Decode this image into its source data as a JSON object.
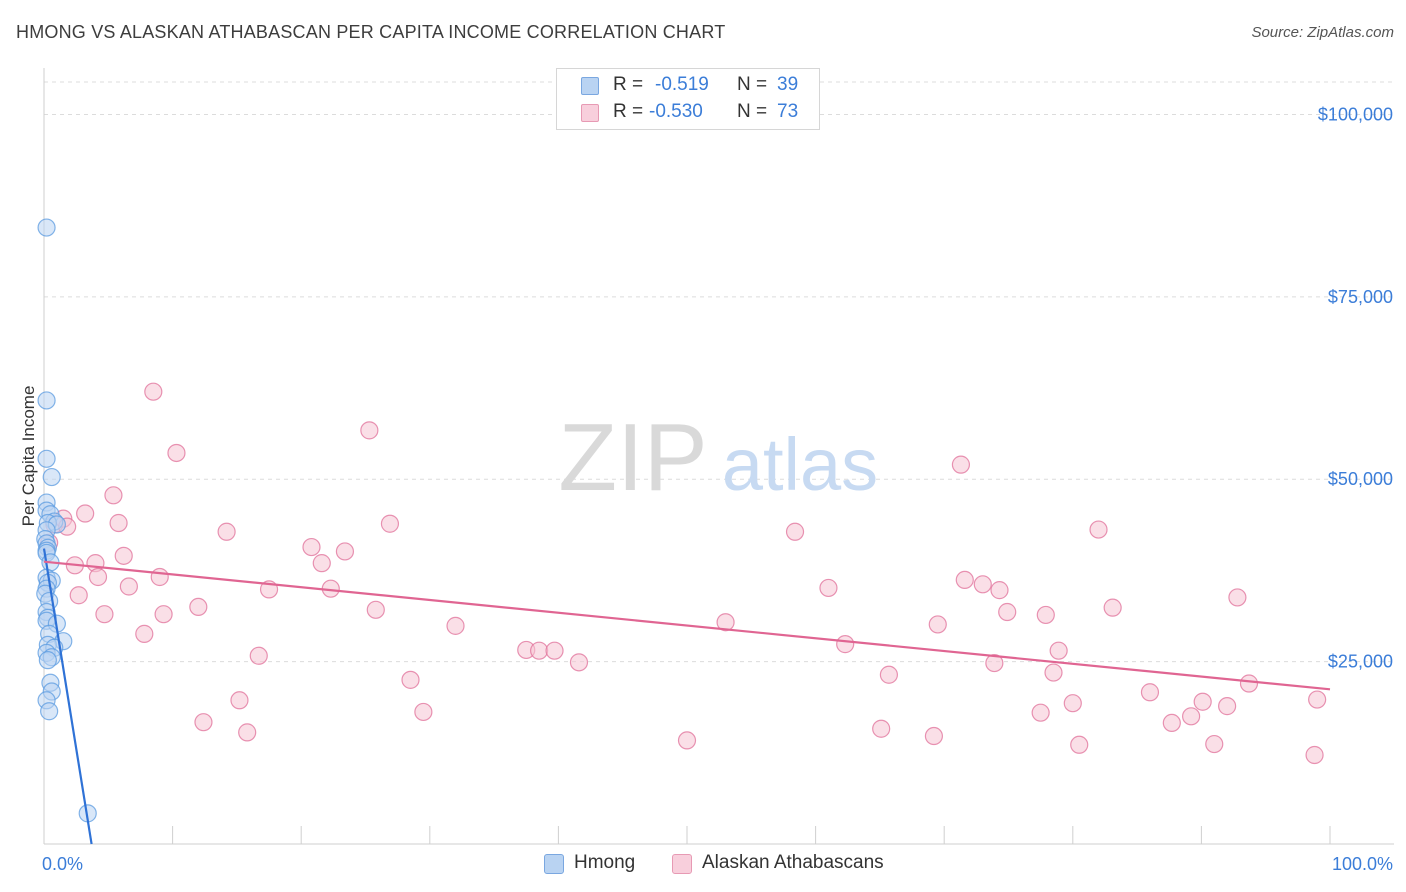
{
  "title": "HMONG VS ALASKAN ATHABASCAN PER CAPITA INCOME CORRELATION CHART",
  "source": "Source: ZipAtlas.com",
  "watermark": {
    "zip": "ZIP",
    "atlas": "atlas"
  },
  "legend": {
    "rows": [
      {
        "r_label": "R =",
        "r_value": "-0.519",
        "n_label": "N =",
        "n_value": "39"
      },
      {
        "r_label": "R =",
        "r_value": "-0.530",
        "n_label": "N =",
        "n_value": "73"
      }
    ]
  },
  "bottom_legend": [
    "Hmong",
    "Alaskan Athabascans"
  ],
  "chart_data": {
    "type": "scatter",
    "title": "HMONG VS ALASKAN ATHABASCAN PER CAPITA INCOME CORRELATION CHART",
    "xlabel": "",
    "ylabel": "Per Capita Income",
    "xlim": [
      0,
      100
    ],
    "ylim": [
      0,
      105000
    ],
    "x_tick_labels": [
      "0.0%",
      "100.0%"
    ],
    "y_ticks": [
      {
        "value": 25000,
        "label": "$25,000"
      },
      {
        "value": 50000,
        "label": "$50,000"
      },
      {
        "value": 75000,
        "label": "$75,000"
      },
      {
        "value": 100000,
        "label": "$100,000"
      }
    ],
    "grid": true,
    "legend_position": "top-center",
    "series": [
      {
        "name": "Hmong",
        "color": "#5b9be0",
        "fill": "#b9d3f2",
        "r": -0.519,
        "n": 39,
        "trend": {
          "x": [
            0,
            3.7
          ],
          "y": [
            40500,
            0
          ]
        },
        "points": [
          [
            0.2,
            84500
          ],
          [
            0.2,
            60800
          ],
          [
            0.2,
            52800
          ],
          [
            0.6,
            50300
          ],
          [
            0.2,
            46800
          ],
          [
            0.2,
            45700
          ],
          [
            0.5,
            45200
          ],
          [
            0.8,
            44200
          ],
          [
            0.3,
            44000
          ],
          [
            1.0,
            43800
          ],
          [
            0.2,
            43000
          ],
          [
            0.1,
            41800
          ],
          [
            0.2,
            41200
          ],
          [
            0.3,
            40600
          ],
          [
            0.2,
            40200
          ],
          [
            0.2,
            39900
          ],
          [
            0.5,
            38600
          ],
          [
            0.2,
            36500
          ],
          [
            0.6,
            36100
          ],
          [
            0.3,
            35800
          ],
          [
            0.2,
            35000
          ],
          [
            0.1,
            34300
          ],
          [
            0.4,
            33300
          ],
          [
            0.2,
            31800
          ],
          [
            0.3,
            31000
          ],
          [
            0.2,
            30600
          ],
          [
            1.0,
            30200
          ],
          [
            0.4,
            28800
          ],
          [
            1.5,
            27800
          ],
          [
            0.3,
            27300
          ],
          [
            0.8,
            26900
          ],
          [
            0.2,
            26200
          ],
          [
            0.6,
            25600
          ],
          [
            0.3,
            25200
          ],
          [
            0.5,
            22100
          ],
          [
            0.6,
            20900
          ],
          [
            0.2,
            19700
          ],
          [
            0.4,
            18200
          ],
          [
            3.4,
            4200
          ]
        ]
      },
      {
        "name": "Alaskan Athabascans",
        "color": "#e0709a",
        "fill": "#f5c4d4",
        "r": -0.53,
        "n": 73,
        "trend": {
          "x": [
            0,
            100
          ],
          "y": [
            38700,
            21200
          ]
        },
        "points": [
          [
            0.4,
            41300
          ],
          [
            0.8,
            43800
          ],
          [
            1.5,
            44600
          ],
          [
            1.8,
            43500
          ],
          [
            2.4,
            38200
          ],
          [
            2.7,
            34100
          ],
          [
            3.2,
            45300
          ],
          [
            4.0,
            38500
          ],
          [
            4.2,
            36600
          ],
          [
            4.7,
            31500
          ],
          [
            5.4,
            47800
          ],
          [
            5.8,
            44000
          ],
          [
            6.2,
            39500
          ],
          [
            6.6,
            35300
          ],
          [
            7.8,
            28800
          ],
          [
            8.5,
            62000
          ],
          [
            9.0,
            36600
          ],
          [
            9.3,
            31500
          ],
          [
            10.3,
            53600
          ],
          [
            12.0,
            32500
          ],
          [
            12.4,
            16700
          ],
          [
            14.2,
            42800
          ],
          [
            15.2,
            19700
          ],
          [
            15.8,
            15300
          ],
          [
            16.7,
            25800
          ],
          [
            17.5,
            34900
          ],
          [
            20.8,
            40700
          ],
          [
            21.6,
            38500
          ],
          [
            22.3,
            35000
          ],
          [
            23.4,
            40100
          ],
          [
            25.3,
            56700
          ],
          [
            25.8,
            32100
          ],
          [
            26.9,
            43900
          ],
          [
            28.5,
            22500
          ],
          [
            29.5,
            18100
          ],
          [
            32.0,
            29900
          ],
          [
            37.5,
            26600
          ],
          [
            38.5,
            26500
          ],
          [
            39.7,
            26500
          ],
          [
            41.6,
            24900
          ],
          [
            50.0,
            14200
          ],
          [
            53.0,
            30400
          ],
          [
            58.4,
            42800
          ],
          [
            61.0,
            35100
          ],
          [
            62.3,
            27400
          ],
          [
            65.1,
            15800
          ],
          [
            65.7,
            23200
          ],
          [
            69.2,
            14800
          ],
          [
            69.5,
            30100
          ],
          [
            71.3,
            52000
          ],
          [
            71.6,
            36200
          ],
          [
            73.0,
            35600
          ],
          [
            73.9,
            24800
          ],
          [
            74.3,
            34800
          ],
          [
            74.9,
            31800
          ],
          [
            77.5,
            18000
          ],
          [
            77.9,
            31400
          ],
          [
            78.5,
            23500
          ],
          [
            78.9,
            26500
          ],
          [
            80.0,
            19300
          ],
          [
            80.5,
            13600
          ],
          [
            82.0,
            43100
          ],
          [
            83.1,
            32400
          ],
          [
            86.0,
            20800
          ],
          [
            87.7,
            16600
          ],
          [
            89.2,
            17500
          ],
          [
            90.1,
            19500
          ],
          [
            91.0,
            13700
          ],
          [
            92.0,
            18900
          ],
          [
            92.8,
            33800
          ],
          [
            93.7,
            22000
          ],
          [
            98.8,
            12200
          ],
          [
            99.0,
            19800
          ]
        ]
      }
    ]
  }
}
